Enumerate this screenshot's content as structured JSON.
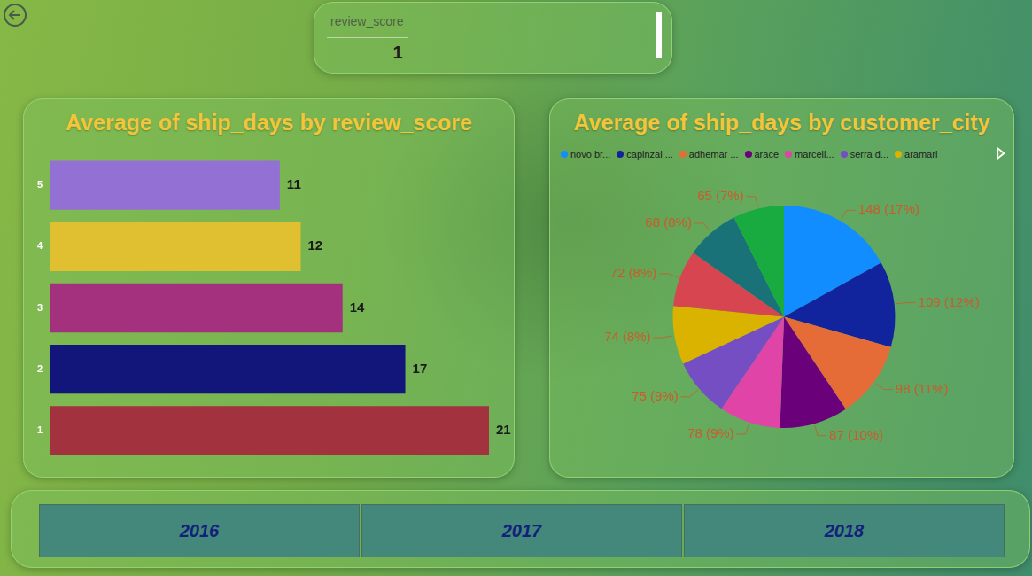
{
  "slicer": {
    "label": "review_score",
    "value": "1"
  },
  "chart_data": [
    {
      "type": "bar",
      "title": "Average of ship_days by review_score",
      "orientation": "horizontal",
      "categories": [
        "5",
        "4",
        "3",
        "2",
        "1"
      ],
      "values": [
        11,
        12,
        14,
        17,
        21
      ],
      "colors": [
        "#9370D4",
        "#E0C030",
        "#A3317E",
        "#12157A",
        "#A3323F"
      ],
      "xlim": [
        0,
        21
      ],
      "data_labels": true,
      "tick_labels": "y",
      "grid": false
    },
    {
      "type": "pie",
      "title": "Average of ship_days by customer_city",
      "categories": [
        "novo br...",
        "capinzal ...",
        "adhemar ...",
        "arace",
        "marceli...",
        "serra d...",
        "aramari",
        null,
        null,
        null
      ],
      "values": [
        148,
        109,
        98,
        87,
        78,
        75,
        74,
        72,
        68,
        65
      ],
      "value_labels": [
        "148 (17%)",
        "109 (12%)",
        "98 (11%)",
        "87 (10%)",
        "78 (9%)",
        "75 (9%)",
        "74 (8%)",
        "72 (8%)",
        "68 (8%)",
        "65 (7%)"
      ],
      "colors": [
        "#118DFF",
        "#12239E",
        "#E66C37",
        "#6B007B",
        "#E044A7",
        "#744EC2",
        "#D9B300",
        "#D64550",
        "#197278",
        "#1AAB40"
      ],
      "legend": "top",
      "data_labels": true
    }
  ],
  "buttons": [
    "2016",
    "2017",
    "2018"
  ]
}
